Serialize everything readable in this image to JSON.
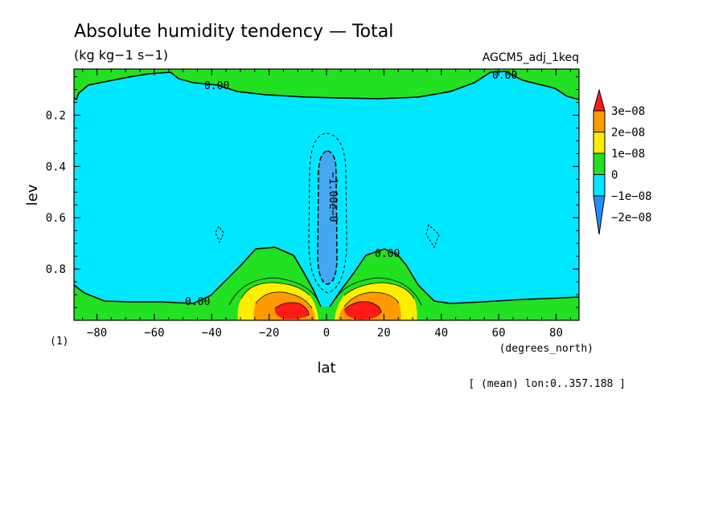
{
  "header": {
    "title": "Absolute humidity tendency — Total",
    "units": "(kg kg−1 s−1)",
    "experiment": "AGCM5_adj_1keq"
  },
  "footer": {
    "mean_note": "[ (mean) lon:0..357.188 ]",
    "panel_index": "(1)"
  },
  "colors": {
    "neg2": "#1e90ff",
    "neg1": "#44a8f0",
    "zero_neg": "#00e8ff",
    "zero_pos": "#22e022",
    "pos1": "#ffee00",
    "pos2": "#ff9a00",
    "pos3": "#ff1a1a"
  },
  "chart_data": {
    "type": "contour",
    "title": "Absolute humidity tendency — Total",
    "units": "(kg kg−1 s−1)",
    "xlabel": "lat",
    "xunit": "(degrees_north)",
    "ylabel": "lev",
    "xlim": [
      -88,
      88
    ],
    "ylim": [
      0.02,
      1.0
    ],
    "y_inverted": true,
    "x_ticks": [
      -80,
      -60,
      -40,
      -20,
      0,
      20,
      40,
      60,
      80
    ],
    "x_tick_labels": [
      "−80",
      "−60",
      "−40",
      "−20",
      "0",
      "20",
      "40",
      "60",
      "80"
    ],
    "y_ticks": [
      0.2,
      0.4,
      0.6,
      0.8
    ],
    "y_tick_labels": [
      "0.2",
      "0.4",
      "0.6",
      "0.8"
    ],
    "colorbar": {
      "levels": [
        -2e-08,
        -1e-08,
        0,
        1e-08,
        2e-08,
        3e-08
      ],
      "labels": [
        "−2e−08",
        "−1e−08",
        "0",
        "1e−08",
        "2e−08",
        "3e−08"
      ],
      "colors": [
        "#1e90ff",
        "#00e8ff",
        "#22e022",
        "#ffee00",
        "#ff9a00",
        "#ff1a1a"
      ],
      "extend": "both"
    },
    "contour_labels": [
      "0.00",
      "0.00",
      "0.00",
      "0.00",
      "−1.00e−0"
    ],
    "regions": [
      {
        "name": "upper positive band",
        "sign": "positive",
        "lev_range": [
          0.02,
          0.12
        ]
      },
      {
        "name": "main negative region",
        "sign": "negative",
        "lev_range": [
          0.12,
          0.95
        ]
      },
      {
        "name": "lower tropospheric positive layer",
        "sign": "positive",
        "lev_range": [
          0.7,
          1.0
        ]
      },
      {
        "name": "equatorial minimum",
        "sign": "negative",
        "lat": 0,
        "lev_range": [
          0.35,
          0.85
        ],
        "min": -1e-08
      },
      {
        "name": "subtropical maximum south",
        "sign": "positive",
        "lat": -12,
        "lev": 0.96,
        "max": 3e-08
      },
      {
        "name": "subtropical maximum north",
        "sign": "positive",
        "lat": 12,
        "lev": 0.96,
        "max": 3e-08
      }
    ]
  }
}
